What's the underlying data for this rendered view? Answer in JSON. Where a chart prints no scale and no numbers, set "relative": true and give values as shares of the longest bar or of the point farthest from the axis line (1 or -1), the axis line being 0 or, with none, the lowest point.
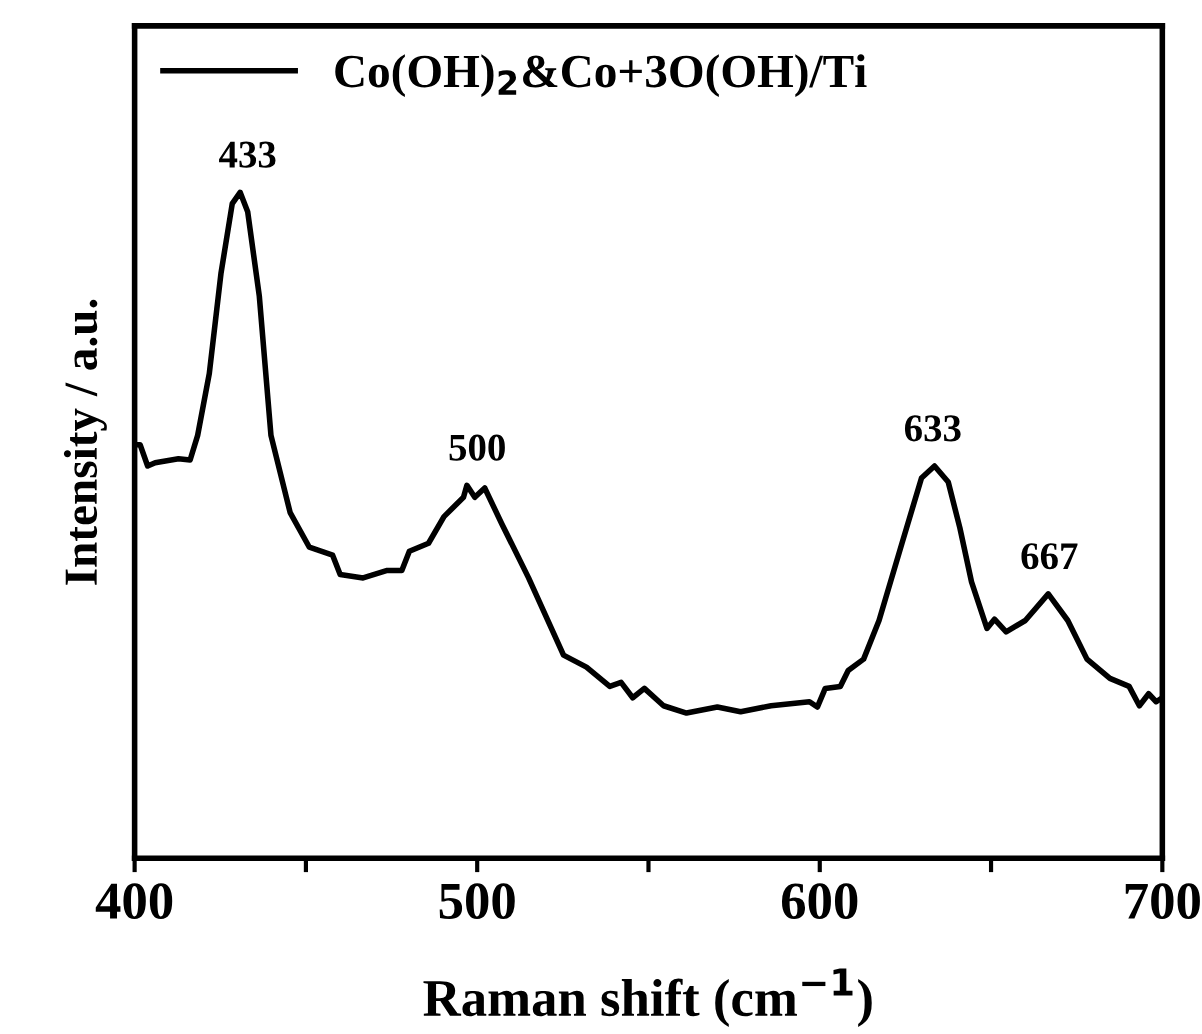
{
  "chart_data": {
    "type": "line",
    "relative": true,
    "xlabel": "Raman shift (cm$^{−1}$)",
    "ylabel": "Intensity / a.u.",
    "xlim": [
      400,
      700
    ],
    "xticks": [
      400,
      {
        "value": 450,
        "label": null
      },
      500,
      {
        "value": 550,
        "label": null
      },
      600,
      {
        "value": 650,
        "label": null
      },
      700
    ],
    "tick_labels": "x",
    "grid": false,
    "legend": "top left",
    "marker": "none",
    "line_style": "solid",
    "x": [
      400,
      401.6,
      403.8,
      406,
      412.8,
      416.2,
      418.4,
      421.8,
      425.2,
      428.5,
      430.8,
      433,
      436.4,
      439.8,
      445.4,
      451,
      457.8,
      460,
      466.7,
      473.5,
      478,
      480.2,
      485.8,
      490.3,
      496,
      497,
      499.3,
      502.2,
      507.2,
      515,
      525.2,
      531.9,
      538.7,
      542,
      545.4,
      548.8,
      554.4,
      561.1,
      570.1,
      576.9,
      585.8,
      597,
      599.3,
      601.6,
      606,
      608.3,
      612.8,
      617.3,
      624,
      629.7,
      633.5,
      637.5,
      640.9,
      644.3,
      648.8,
      651,
      654.4,
      660,
      666.7,
      672.4,
      678,
      684.7,
      690.3,
      693.3,
      696,
      698.2,
      700
    ],
    "series": [
      {
        "name": "Co(OH)$_{2}$&Co+3O(OH)/Ti",
        "color": "#000000",
        "values": [
          0.621,
          0.621,
          0.589,
          0.594,
          0.6,
          0.598,
          0.635,
          0.728,
          0.878,
          0.983,
          1.0,
          0.971,
          0.844,
          0.635,
          0.519,
          0.467,
          0.455,
          0.426,
          0.421,
          0.432,
          0.432,
          0.461,
          0.473,
          0.513,
          0.542,
          0.56,
          0.542,
          0.556,
          0.502,
          0.421,
          0.305,
          0.287,
          0.258,
          0.264,
          0.241,
          0.255,
          0.229,
          0.218,
          0.227,
          0.22,
          0.229,
          0.235,
          0.227,
          0.255,
          0.258,
          0.282,
          0.299,
          0.357,
          0.473,
          0.571,
          0.589,
          0.565,
          0.496,
          0.415,
          0.345,
          0.359,
          0.34,
          0.357,
          0.397,
          0.357,
          0.299,
          0.27,
          0.258,
          0.229,
          0.247,
          0.235,
          0.241
        ]
      }
    ],
    "annotations": [
      {
        "text": "433",
        "x": 433,
        "y": 1.0
      },
      {
        "text": "500",
        "x": 500,
        "y": 0.56
      },
      {
        "text": "633",
        "x": 633,
        "y": 0.589
      },
      {
        "text": "667",
        "x": 667,
        "y": 0.397
      }
    ]
  }
}
